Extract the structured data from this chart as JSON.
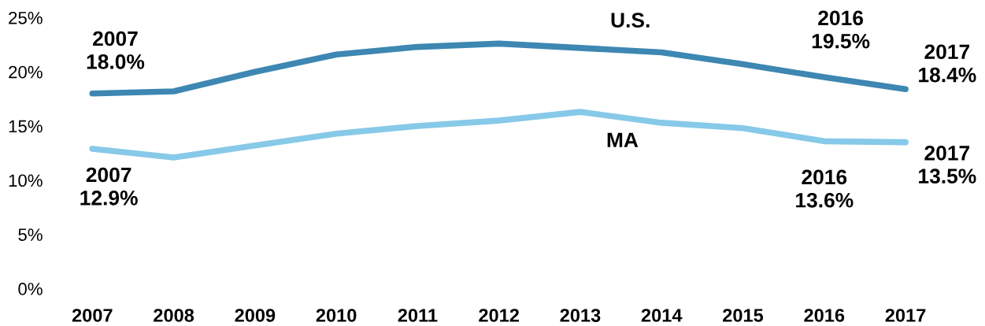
{
  "chart_data": {
    "type": "line",
    "categories": [
      "2007",
      "2008",
      "2009",
      "2010",
      "2011",
      "2012",
      "2013",
      "2014",
      "2015",
      "2016",
      "2017"
    ],
    "series": [
      {
        "name": "U.S.",
        "color": "#3d87b2",
        "values": [
          18.0,
          18.2,
          20.0,
          21.6,
          22.3,
          22.6,
          22.2,
          21.8,
          20.7,
          19.5,
          18.4
        ]
      },
      {
        "name": "MA",
        "color": "#87c9e8",
        "values": [
          12.9,
          12.1,
          13.2,
          14.3,
          15.0,
          15.5,
          16.3,
          15.3,
          14.8,
          13.6,
          13.5
        ]
      }
    ],
    "ylim": [
      0,
      25
    ],
    "yticks": [
      {
        "value": 0,
        "label": "0%"
      },
      {
        "value": 5,
        "label": "5%"
      },
      {
        "value": 10,
        "label": "10%"
      },
      {
        "value": 15,
        "label": "15%"
      },
      {
        "value": 20,
        "label": "20%"
      },
      {
        "value": 25,
        "label": "25%"
      }
    ],
    "grid": false,
    "legend": false,
    "marker": "none",
    "line_style": "solid",
    "annotations": [
      {
        "text": "2007\n18.0%",
        "x": "2007",
        "y": 18.0
      },
      {
        "text": "2016\n19.5%",
        "x": "2016",
        "y": 19.5
      },
      {
        "text": "2017\n18.4%",
        "x": "2017",
        "y": 18.4
      },
      {
        "text": "2007\n12.9%",
        "x": "2007",
        "y": 12.9
      },
      {
        "text": "2016\n13.6%",
        "x": "2016",
        "y": 13.6
      },
      {
        "text": "2017\n13.5%",
        "x": "2017",
        "y": 13.5
      }
    ]
  }
}
